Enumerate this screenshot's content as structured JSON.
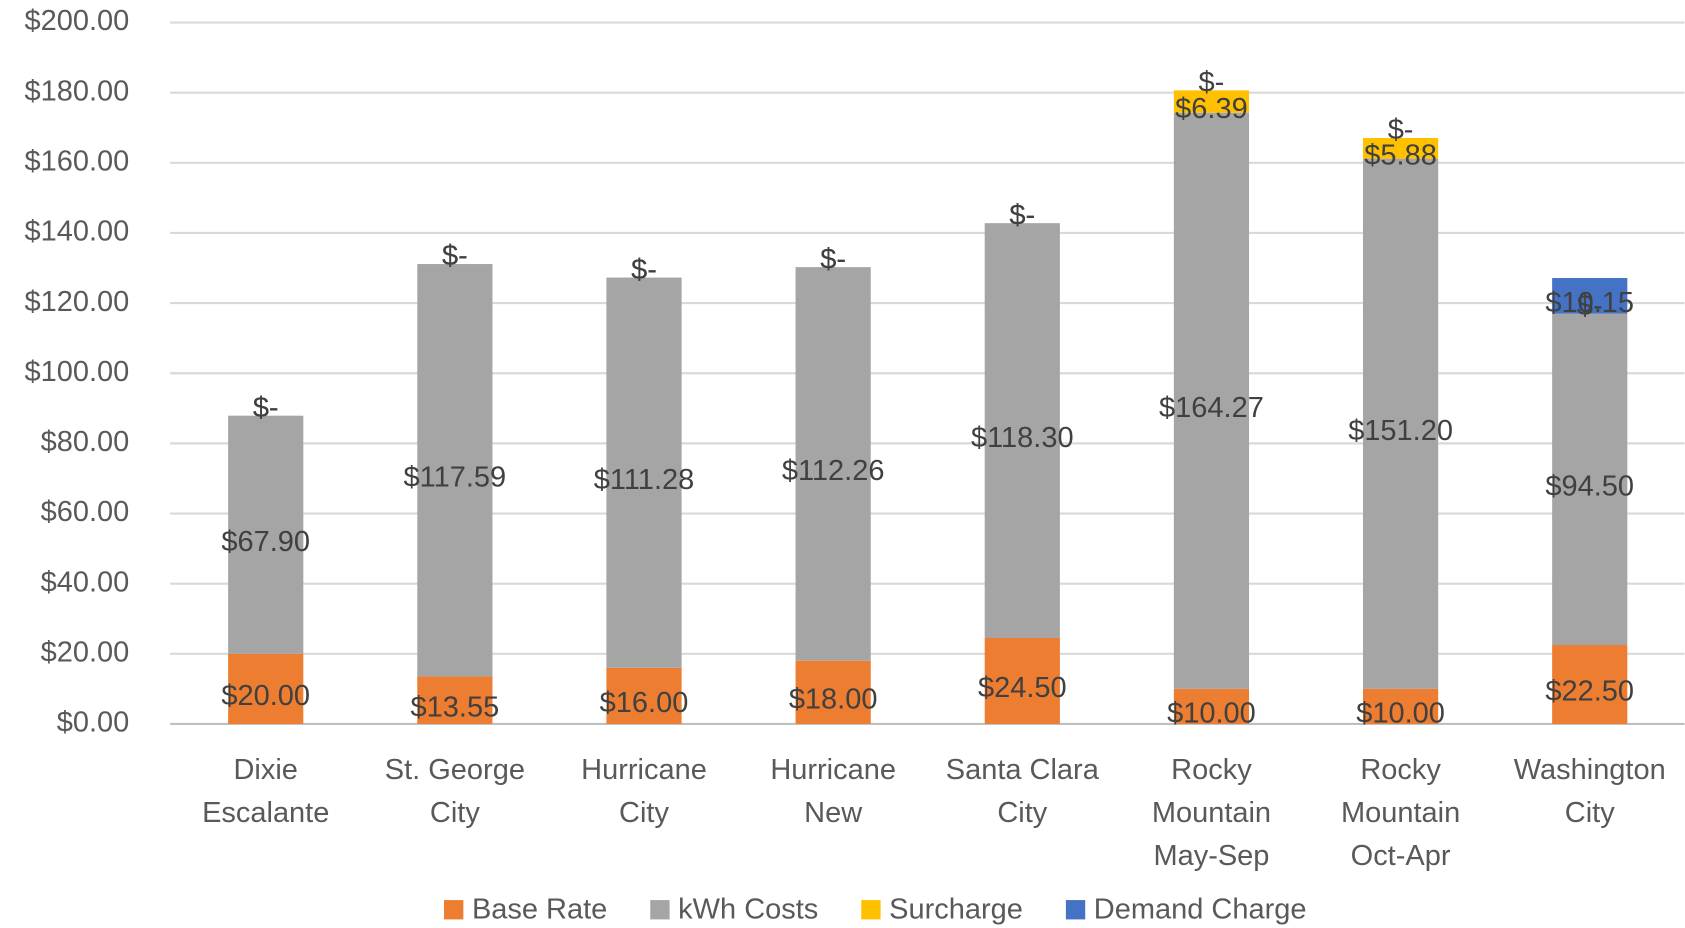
{
  "chart_data": {
    "type": "bar",
    "stacked": true,
    "categories": [
      "Dixie\nEscalante",
      "St. George\nCity",
      "Hurricane\nCity",
      "Hurricane\nNew",
      "Santa Clara\nCity",
      "Rocky\nMountain\nMay-Sep",
      "Rocky\nMountain\nOct-Apr",
      "Washington\nCity"
    ],
    "series": [
      {
        "name": "Base Rate",
        "color": "#ED7D31",
        "values": [
          20,
          13.55,
          16,
          18,
          24.5,
          10,
          10,
          22.5
        ],
        "value_labels": [
          "$20.00",
          "$13.55",
          "$16.00",
          "$18.00",
          "$24.50",
          "$10.00",
          "$10.00",
          "$22.50"
        ]
      },
      {
        "name": "kWh Costs",
        "color": "#A5A5A5",
        "values": [
          67.9,
          117.59,
          111.28,
          112.26,
          118.3,
          164.27,
          151.2,
          94.5
        ],
        "value_labels": [
          "$67.90",
          "$117.59",
          "$111.28",
          "$112.26",
          "$118.30",
          "$164.27",
          "$151.20",
          "$94.50"
        ]
      },
      {
        "name": "Surcharge",
        "color": "#FFC000",
        "values": [
          0,
          0,
          0,
          0,
          0,
          6.39,
          5.88,
          0
        ],
        "value_labels": [
          "$-",
          "$-",
          "$-",
          "$-",
          "$-",
          "$6.39",
          "$5.88",
          "$-"
        ]
      },
      {
        "name": "Demand Charge",
        "color": "#4472C4",
        "values": [
          0,
          0,
          0,
          0,
          0,
          0,
          0,
          10.15
        ],
        "value_labels": [
          "$-",
          "$-",
          "$-",
          "$-",
          "$-",
          "$-",
          "$-",
          "$10.15"
        ]
      }
    ],
    "ylim": [
      0,
      200
    ],
    "yticks": [
      {
        "value": 0,
        "label": "$0.00"
      },
      {
        "value": 20,
        "label": "$20.00"
      },
      {
        "value": 40,
        "label": "$40.00"
      },
      {
        "value": 60,
        "label": "$60.00"
      },
      {
        "value": 80,
        "label": "$80.00"
      },
      {
        "value": 100,
        "label": "$100.00"
      },
      {
        "value": 120,
        "label": "$120.00"
      },
      {
        "value": 140,
        "label": "$140.00"
      },
      {
        "value": 160,
        "label": "$160.00"
      },
      {
        "value": 180,
        "label": "$180.00"
      },
      {
        "value": 200,
        "label": "$200.00"
      }
    ],
    "grid": true,
    "legend": "bottom"
  }
}
